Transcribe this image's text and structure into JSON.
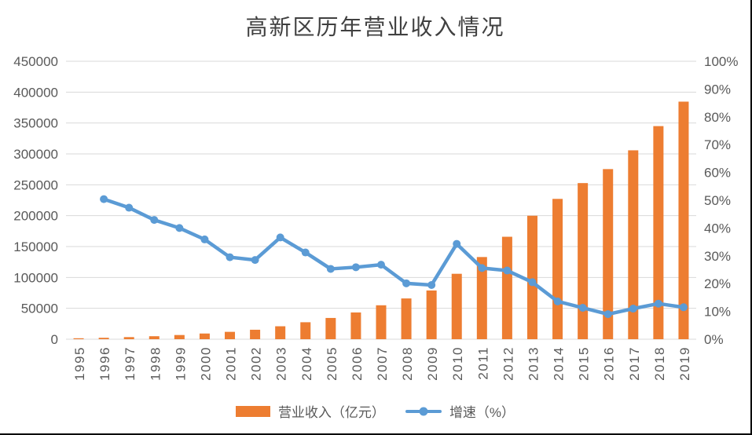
{
  "title": "高新区历年营业收入情况",
  "legend": {
    "revenue": "营业收入（亿元）",
    "growth": "增速（%）"
  },
  "colors": {
    "bar": "#ED7D31",
    "line": "#5B9BD5",
    "grid": "#D9D9D9",
    "axis_text": "#595959",
    "title_text": "#404040",
    "border": "#000000"
  },
  "axes": {
    "left_ticks": [
      "0",
      "50000",
      "100000",
      "150000",
      "200000",
      "250000",
      "300000",
      "350000",
      "400000",
      "450000"
    ],
    "right_ticks": [
      "0%",
      "10%",
      "20%",
      "30%",
      "40%",
      "50%",
      "60%",
      "70%",
      "80%",
      "90%",
      "100%"
    ]
  },
  "chart_data": {
    "type": "bar+line combo",
    "title": "高新区历年营业收入情况",
    "categories": [
      "1995",
      "1996",
      "1997",
      "1998",
      "1999",
      "2000",
      "2001",
      "2002",
      "2003",
      "2004",
      "2005",
      "2006",
      "2007",
      "2008",
      "2009",
      "2010",
      "2011",
      "2012",
      "2013",
      "2014",
      "2015",
      "2016",
      "2017",
      "2018",
      "2019"
    ],
    "series": [
      {
        "name": "营业收入（亿元）",
        "type": "bar",
        "axis": "left",
        "color": "#ED7D31",
        "values": [
          1529,
          2300,
          3388,
          4840,
          6775,
          9209,
          11928,
          15326,
          20939,
          27466,
          34416,
          43320,
          54926,
          65986,
          78871,
          105917,
          133034,
          165844,
          199902,
          227184,
          252749,
          275400,
          305800,
          345000,
          384600
        ]
      },
      {
        "name": "增速（%）",
        "type": "line",
        "axis": "right",
        "color": "#5B9BD5",
        "values": [
          null,
          50.4,
          47.3,
          42.9,
          40.0,
          35.9,
          29.5,
          28.5,
          36.6,
          31.2,
          25.3,
          25.9,
          26.8,
          20.1,
          19.5,
          34.3,
          25.6,
          24.7,
          20.5,
          13.6,
          11.3,
          9.0,
          11.0,
          12.8,
          11.5
        ]
      }
    ],
    "left_axis": {
      "min": 0,
      "max": 450000,
      "step": 50000
    },
    "right_axis": {
      "min": 0,
      "max": 100,
      "step": 10,
      "format": "percent"
    },
    "grid": true,
    "legend_position": "bottom",
    "x_label_rotation": -90
  }
}
